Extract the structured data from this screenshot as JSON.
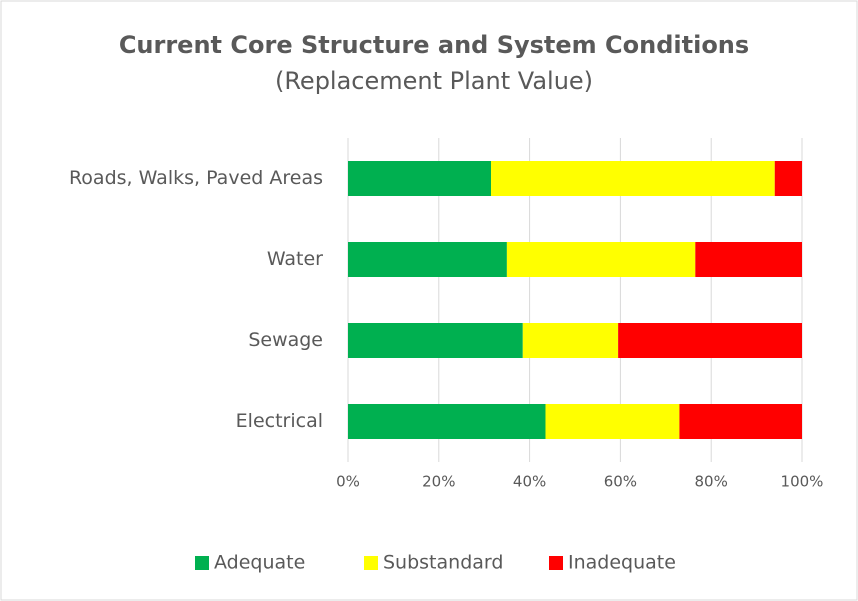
{
  "chart_data": {
    "type": "stacked_bar_horizontal",
    "title": "Current Core Structure and System Conditions",
    "subtitle": "(Replacement Plant Value)",
    "categories": [
      "Roads, Walks, Paved Areas",
      "Water",
      "Sewage",
      "Electrical"
    ],
    "series": [
      {
        "name": "Adequate",
        "color": "#00b050",
        "values": [
          31.5,
          35,
          38.5,
          43.5
        ]
      },
      {
        "name": "Substandard",
        "color": "#ffff00",
        "values": [
          62.5,
          41.5,
          21,
          29.5
        ]
      },
      {
        "name": "Inadequate",
        "color": "#ff0000",
        "values": [
          6,
          23.5,
          40.5,
          27
        ]
      }
    ],
    "xlim": [
      0,
      100
    ],
    "xticks": [
      {
        "value": 0,
        "label": "0%"
      },
      {
        "value": 20,
        "label": "20%"
      },
      {
        "value": 40,
        "label": "40%"
      },
      {
        "value": 60,
        "label": "60%"
      },
      {
        "value": 80,
        "label": "80%"
      },
      {
        "value": 100,
        "label": "100%"
      }
    ],
    "grid": true,
    "legend": "bottom"
  }
}
